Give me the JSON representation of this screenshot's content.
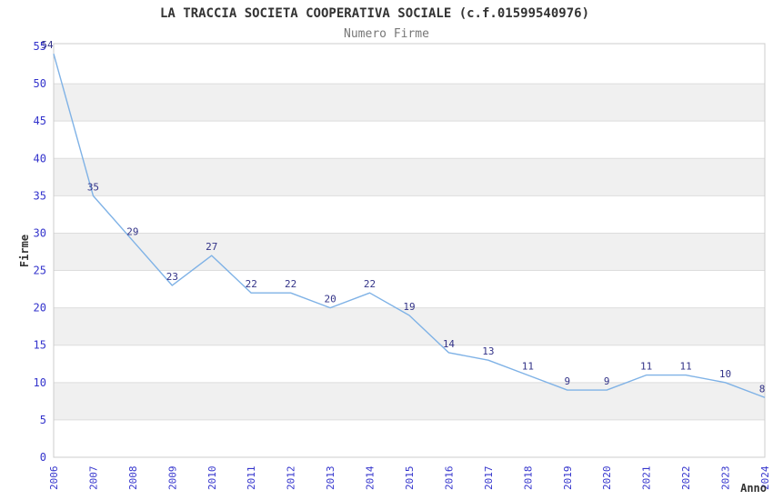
{
  "chart_data": {
    "type": "line",
    "title": "LA TRACCIA SOCIETA COOPERATIVA SOCIALE (c.f.01599540976)",
    "subtitle": "Numero Firme",
    "xlabel": "Anno",
    "ylabel": "Firme",
    "categories": [
      "2006",
      "2007",
      "2008",
      "2009",
      "2010",
      "2011",
      "2012",
      "2013",
      "2014",
      "2015",
      "2016",
      "2017",
      "2018",
      "2019",
      "2020",
      "2021",
      "2022",
      "2023",
      "2024"
    ],
    "values": [
      54,
      35,
      29,
      23,
      27,
      22,
      22,
      20,
      22,
      19,
      14,
      13,
      11,
      9,
      9,
      11,
      11,
      10,
      8
    ],
    "ylim": [
      0,
      55
    ],
    "yticks": [
      0,
      5,
      10,
      15,
      20,
      25,
      30,
      35,
      40,
      45,
      50,
      55
    ],
    "grid": true,
    "legend": "none",
    "point_labels_visible": true,
    "x_tick_rotation_deg": -90,
    "colors": {
      "line": "#7fb2e6",
      "point_label": "#333388",
      "tick_label": "#3333cc",
      "title": "#333333",
      "subtitle": "#777777",
      "axis_title": "#333333",
      "band": "#f0f0f0",
      "gridline": "#dddddd",
      "plot_border": "#cccccc",
      "background": "#ffffff"
    }
  }
}
